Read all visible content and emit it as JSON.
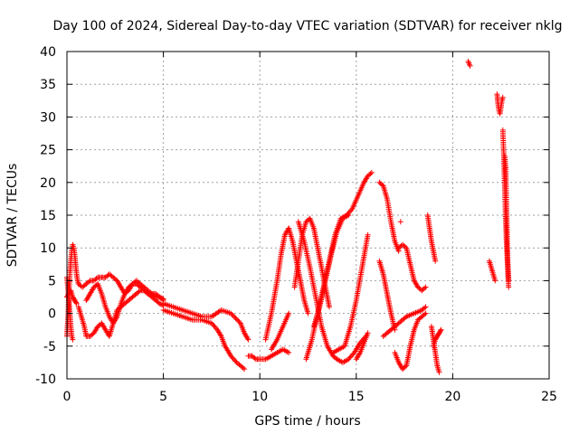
{
  "chart_data": {
    "type": "scatter",
    "title": "Day 100 of 2024, Sidereal Day-to-day VTEC variation (SDTVAR) for receiver nklg",
    "xlabel": "GPS time / hours",
    "ylabel": "SDTVAR / TECUs",
    "xlim": [
      0,
      25
    ],
    "ylim": [
      -10,
      40
    ],
    "xticks": [
      0,
      5,
      10,
      15,
      20,
      25
    ],
    "yticks": [
      -10,
      -5,
      0,
      5,
      10,
      15,
      20,
      25,
      30,
      35,
      40
    ],
    "grid": true,
    "marker": "+",
    "color": "#ff0000",
    "tracks": [
      {
        "name": "track-a",
        "x": [
          0.0,
          0.05,
          0.1,
          0.15,
          0.2,
          0.25,
          0.3,
          0.35,
          0.4,
          0.45,
          0.5,
          0.55,
          0.6
        ],
        "y": [
          -3.5,
          -1.0,
          3.0,
          6.0,
          8.0,
          9.5,
          10.5,
          10.0,
          9.0,
          7.5,
          6.0,
          5.0,
          4.5
        ]
      },
      {
        "name": "track-b",
        "x": [
          0.0,
          0.05,
          0.1,
          0.15,
          0.2,
          0.25,
          0.3
        ],
        "y": [
          5.5,
          4.0,
          2.0,
          0.0,
          -2.0,
          -3.5,
          -4.0
        ]
      },
      {
        "name": "track-c",
        "x": [
          0.0,
          0.1,
          0.2,
          0.3,
          0.4,
          0.5
        ],
        "y": [
          2.5,
          3.0,
          3.5,
          2.5,
          2.0,
          1.5
        ]
      },
      {
        "name": "track-d",
        "x": [
          0.6,
          0.7,
          0.8,
          0.9,
          1.0,
          1.2,
          1.4,
          1.6,
          1.8,
          2.0,
          2.2,
          2.4,
          2.6,
          2.8,
          3.0,
          3.2,
          3.4,
          3.6,
          3.8,
          4.0,
          4.2,
          4.4,
          4.6,
          4.8,
          5.0
        ],
        "y": [
          1.0,
          0.0,
          -1.0,
          -2.0,
          -3.5,
          -3.5,
          -3.0,
          -2.0,
          -1.5,
          -2.5,
          -3.5,
          -1.5,
          0.5,
          1.0,
          1.5,
          2.0,
          2.5,
          3.0,
          3.5,
          3.5,
          3.0,
          2.5,
          2.0,
          1.5,
          1.2
        ]
      },
      {
        "name": "track-e",
        "x": [
          0.6,
          0.8,
          1.0,
          1.2,
          1.4,
          1.6,
          1.8,
          2.0,
          2.2,
          2.4,
          2.6,
          2.8,
          3.0,
          3.2,
          3.4,
          3.6,
          3.8,
          4.0,
          4.2,
          4.4,
          4.6,
          4.8,
          5.0
        ],
        "y": [
          4.5,
          4.0,
          4.5,
          5.0,
          5.0,
          5.5,
          5.5,
          5.5,
          6.0,
          5.5,
          5.0,
          4.0,
          3.0,
          3.5,
          4.5,
          5.0,
          4.5,
          4.0,
          3.5,
          3.0,
          3.0,
          2.5,
          2.2
        ]
      },
      {
        "name": "track-f",
        "x": [
          1.0,
          1.2,
          1.4,
          1.6,
          1.8,
          2.0,
          2.2,
          2.4,
          2.6,
          2.8,
          3.0,
          3.2,
          3.4,
          3.6,
          3.8,
          4.0,
          4.2,
          4.4,
          4.6,
          4.8,
          5.0
        ],
        "y": [
          2.0,
          3.0,
          4.0,
          4.5,
          3.0,
          1.0,
          -0.5,
          -1.5,
          -0.5,
          1.5,
          3.0,
          4.0,
          4.5,
          4.5,
          4.0,
          3.5,
          3.0,
          3.0,
          2.5,
          2.5,
          2.0
        ]
      },
      {
        "name": "track-g",
        "x": [
          5.0,
          5.5,
          6.0,
          6.5,
          7.0,
          7.5,
          8.0,
          8.5,
          9.0,
          9.2,
          9.4
        ],
        "y": [
          1.5,
          1.0,
          0.5,
          0.0,
          -0.5,
          -0.5,
          0.5,
          0.0,
          -1.5,
          -3.0,
          -4.0
        ]
      },
      {
        "name": "track-h",
        "x": [
          5.0,
          5.5,
          6.0,
          6.5,
          7.0,
          7.5,
          7.8,
          8.0,
          8.2,
          8.5,
          8.8,
          9.0,
          9.2
        ],
        "y": [
          0.5,
          0.0,
          -0.5,
          -1.0,
          -1.0,
          -1.5,
          -2.5,
          -3.5,
          -5.0,
          -6.5,
          -7.5,
          -8.0,
          -8.5
        ]
      },
      {
        "name": "track-i",
        "x": [
          9.4,
          9.6,
          9.8,
          10.0,
          10.3,
          10.6,
          10.9,
          11.2,
          11.5
        ],
        "y": [
          -6.5,
          -6.5,
          -7.0,
          -7.0,
          -7.0,
          -6.5,
          -6.0,
          -5.5,
          -6.0
        ]
      },
      {
        "name": "track-j",
        "x": [
          10.3,
          10.6,
          10.9,
          11.1,
          11.3,
          11.5
        ],
        "y": [
          -4.0,
          0.0,
          5.0,
          9.0,
          12.0,
          13.0
        ]
      },
      {
        "name": "track-k",
        "x": [
          10.6,
          10.9,
          11.2,
          11.5
        ],
        "y": [
          -5.5,
          -4.0,
          -2.0,
          0.0
        ]
      },
      {
        "name": "track-l",
        "x": [
          11.8,
          12.0,
          12.2,
          12.4,
          12.6,
          12.8,
          13.0,
          13.2,
          13.4,
          13.6
        ],
        "y": [
          4.0,
          8.0,
          12.0,
          14.0,
          14.5,
          13.0,
          10.0,
          7.0,
          4.0,
          1.0
        ]
      },
      {
        "name": "track-m",
        "x": [
          12.4,
          12.7,
          13.0,
          13.3,
          13.6,
          13.9,
          14.2,
          14.5,
          14.8,
          15.1,
          15.4,
          15.6,
          15.8
        ],
        "y": [
          -7.0,
          -4.0,
          0.0,
          4.0,
          8.0,
          12.0,
          14.5,
          15.0,
          16.0,
          18.0,
          20.0,
          21.0,
          21.5
        ]
      },
      {
        "name": "track-n",
        "x": [
          12.0,
          12.3,
          12.6,
          12.9,
          13.2,
          13.5,
          13.8,
          14.0,
          14.3,
          14.6,
          14.9,
          15.2,
          15.5
        ],
        "y": [
          14.0,
          11.0,
          7.0,
          2.5,
          -2.0,
          -5.0,
          -6.5,
          -7.0,
          -7.5,
          -7.0,
          -6.0,
          -4.5,
          -3.5
        ]
      },
      {
        "name": "track-o",
        "x": [
          11.5,
          11.7,
          11.9,
          12.1,
          12.3,
          12.5
        ],
        "y": [
          13.0,
          11.0,
          8.0,
          5.0,
          2.0,
          0.0
        ]
      },
      {
        "name": "track-p",
        "x": [
          12.8,
          13.1,
          13.4,
          13.7,
          14.0,
          14.3,
          14.6
        ],
        "y": [
          -2.0,
          1.0,
          5.0,
          9.0,
          12.5,
          14.5,
          15.0
        ]
      },
      {
        "name": "track-q",
        "x": [
          13.8,
          14.1,
          14.4,
          14.7,
          15.0,
          15.3,
          15.6
        ],
        "y": [
          -6.0,
          -5.5,
          -5.0,
          -2.0,
          2.0,
          7.0,
          12.0
        ]
      },
      {
        "name": "track-r",
        "x": [
          15.0,
          15.2,
          15.4,
          15.6
        ],
        "y": [
          -7.0,
          -6.0,
          -4.5,
          -3.0
        ]
      },
      {
        "name": "track-s",
        "x": [
          16.2,
          16.4,
          16.6,
          16.8,
          17.0,
          17.2
        ],
        "y": [
          20.0,
          19.5,
          17.5,
          14.0,
          11.0,
          9.5
        ]
      },
      {
        "name": "track-t",
        "x": [
          16.2,
          16.4,
          16.6,
          16.8,
          17.0
        ],
        "y": [
          8.0,
          6.0,
          3.0,
          0.0,
          -2.5
        ]
      },
      {
        "name": "track-u",
        "x": [
          17.0,
          17.2,
          17.4,
          17.6,
          17.8,
          18.0,
          18.2,
          18.4,
          18.6
        ],
        "y": [
          -6.0,
          -7.5,
          -8.5,
          -8.0,
          -5.0,
          -2.5,
          -1.0,
          -0.5,
          0.0
        ]
      },
      {
        "name": "track-v",
        "x": [
          17.2,
          17.4,
          17.6,
          17.8,
          18.0,
          18.2,
          18.4,
          18.6
        ],
        "y": [
          10.0,
          10.5,
          10.0,
          7.5,
          5.0,
          4.0,
          3.5,
          4.0
        ]
      },
      {
        "name": "track-w",
        "x": [
          16.4,
          16.8,
          17.2,
          17.6,
          18.0,
          18.4,
          18.6
        ],
        "y": [
          -3.5,
          -2.5,
          -1.5,
          -0.5,
          0.0,
          0.5,
          1.0
        ]
      },
      {
        "name": "track-x",
        "x": [
          18.7,
          18.8,
          18.9,
          19.0,
          19.1
        ],
        "y": [
          15.0,
          13.0,
          11.0,
          9.5,
          8.0
        ]
      },
      {
        "name": "track-y",
        "x": [
          18.9,
          19.0,
          19.1,
          19.2,
          19.3
        ],
        "y": [
          -2.0,
          -4.0,
          -6.0,
          -8.0,
          -9.0
        ]
      },
      {
        "name": "track-z",
        "x": [
          19.0,
          19.1,
          19.2,
          19.3,
          19.4
        ],
        "y": [
          -5.0,
          -4.0,
          -3.5,
          -3.0,
          -2.5
        ]
      },
      {
        "name": "track-aa",
        "x": [
          20.8,
          20.9
        ],
        "y": [
          38.5,
          37.8
        ]
      },
      {
        "name": "track-ab",
        "x": [
          21.9,
          22.0,
          22.1,
          22.2
        ],
        "y": [
          8.0,
          7.0,
          6.0,
          5.0
        ]
      },
      {
        "name": "track-ac",
        "x": [
          22.3,
          22.35,
          22.4,
          22.45,
          22.5,
          22.55,
          22.6
        ],
        "y": [
          33.5,
          32.0,
          31.0,
          30.5,
          31.5,
          32.5,
          33.0
        ]
      },
      {
        "name": "track-ad",
        "x": [
          22.6,
          22.65,
          22.7,
          22.75,
          22.8,
          22.85,
          22.9
        ],
        "y": [
          28.0,
          24.0,
          19.0,
          14.0,
          10.0,
          7.0,
          4.0
        ]
      },
      {
        "name": "track-ae",
        "x": [
          22.7,
          22.75,
          22.8,
          22.85,
          22.9
        ],
        "y": [
          24.0,
          22.0,
          15.0,
          8.0,
          5.0
        ]
      },
      {
        "name": "track-af",
        "x": [
          17.3
        ],
        "y": [
          14.0
        ]
      }
    ]
  }
}
